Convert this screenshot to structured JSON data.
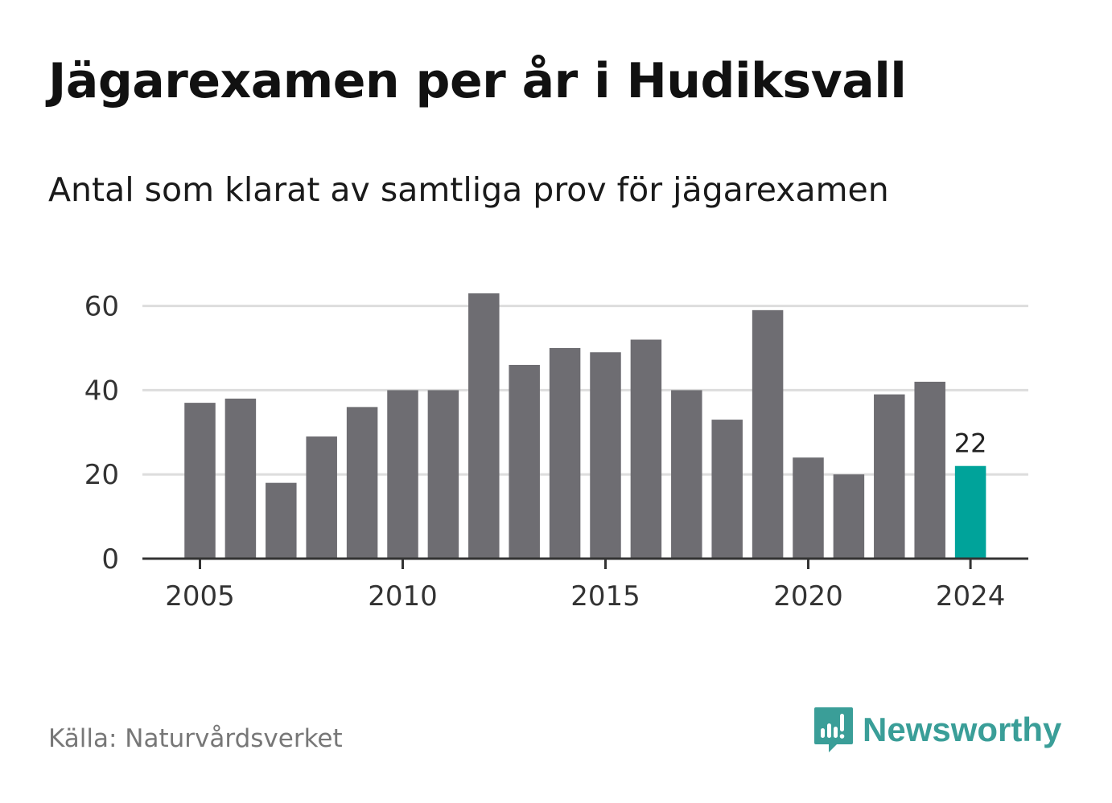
{
  "title": "Jägarexamen per år i Hudiksvall",
  "subtitle": "Antal som klarat av samtliga prov för jägarexamen",
  "source": "Källa: Naturvårdsverket",
  "brand": {
    "name": "Newsworthy",
    "icon": "newsworthy-logo-icon",
    "color": "#3a9e98"
  },
  "chart_data": {
    "type": "bar",
    "categories": [
      2005,
      2006,
      2007,
      2008,
      2009,
      2010,
      2011,
      2012,
      2013,
      2014,
      2015,
      2016,
      2017,
      2018,
      2019,
      2020,
      2021,
      2022,
      2023,
      2024
    ],
    "values": [
      37,
      38,
      18,
      29,
      36,
      40,
      40,
      63,
      46,
      50,
      49,
      52,
      40,
      33,
      59,
      24,
      20,
      39,
      42,
      22
    ],
    "x_ticks": [
      "2005",
      "2010",
      "2015",
      "2020",
      "2024"
    ],
    "y_ticks": [
      "0",
      "20",
      "40",
      "60"
    ],
    "ylim": [
      0,
      64
    ],
    "grid": true,
    "bar_color": "#6e6d72",
    "highlight_color": "#00a39a",
    "highlight_index": 19,
    "highlight_label": "22"
  }
}
